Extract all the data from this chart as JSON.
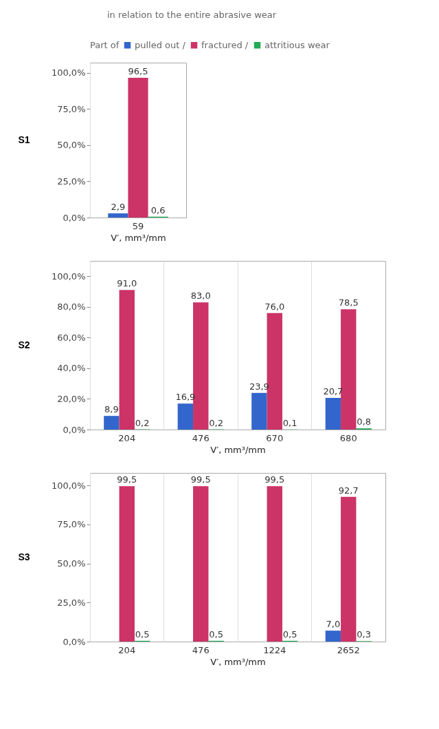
{
  "chart_data": [
    {
      "type": "bar",
      "legend_title": "Part of",
      "subtitle": "in relation to the entire abrasive wear",
      "legend": "top",
      "ylabel": "S1",
      "xlabel": "V′, mm³/mm",
      "categories": [
        "59"
      ],
      "ylim": [
        0,
        107
      ],
      "yticks": [
        {
          "value": 0,
          "label": "0,0%"
        },
        {
          "value": 25,
          "label": "25,0%"
        },
        {
          "value": 50,
          "label": "50,0%"
        },
        {
          "value": 75,
          "label": "75,0%"
        },
        {
          "value": 100,
          "label": "100,0%"
        }
      ],
      "series": [
        {
          "name": "pulled out /",
          "color": "#3366cc",
          "values": [
            2.9
          ],
          "value_labels": [
            "2,9"
          ]
        },
        {
          "name": "fractured /",
          "color": "#cc3366",
          "values": [
            96.5
          ],
          "value_labels": [
            "96,5"
          ]
        },
        {
          "name": "attritious wear",
          "color": "#22aa55",
          "values": [
            0.6
          ],
          "value_labels": [
            "0,6"
          ]
        }
      ]
    },
    {
      "type": "bar",
      "ylabel": "S2",
      "xlabel": "V′, mm³/mm",
      "categories": [
        "204",
        "476",
        "670",
        "680"
      ],
      "ylim": [
        0,
        110
      ],
      "yticks": [
        {
          "value": 0,
          "label": "0,0%"
        },
        {
          "value": 20,
          "label": "20,0%"
        },
        {
          "value": 40,
          "label": "40,0%"
        },
        {
          "value": 60,
          "label": "60,0%"
        },
        {
          "value": 80,
          "label": "80,0%"
        },
        {
          "value": 100,
          "label": "100,0%"
        }
      ],
      "series": [
        {
          "color": "#3366cc",
          "values": [
            8.9,
            16.9,
            23.9,
            20.7
          ],
          "value_labels": [
            "8,9",
            "16,9",
            "23,9",
            "20,7"
          ]
        },
        {
          "color": "#cc3366",
          "values": [
            91.0,
            83.0,
            76.0,
            78.5
          ],
          "value_labels": [
            "91,0",
            "83,0",
            "76,0",
            "78,5"
          ]
        },
        {
          "color": "#22aa55",
          "values": [
            0.2,
            0.2,
            0.1,
            0.8
          ],
          "value_labels": [
            "0,2",
            "0,2",
            "0,1",
            "0,8"
          ]
        }
      ]
    },
    {
      "type": "bar",
      "ylabel": "S3",
      "xlabel": "V′, mm³/mm",
      "categories": [
        "204",
        "476",
        "1224",
        "2652"
      ],
      "ylim": [
        0,
        108
      ],
      "yticks": [
        {
          "value": 0,
          "label": "0,0%"
        },
        {
          "value": 25,
          "label": "25,0%"
        },
        {
          "value": 50,
          "label": "50,0%"
        },
        {
          "value": 75,
          "label": "75,0%"
        },
        {
          "value": 100,
          "label": "100,0%"
        }
      ],
      "series": [
        {
          "color": "#3366cc",
          "values": [
            null,
            null,
            null,
            7.0
          ],
          "value_labels": [
            null,
            null,
            null,
            "7,0"
          ]
        },
        {
          "color": "#cc3366",
          "values": [
            99.5,
            99.5,
            99.5,
            92.7
          ],
          "value_labels": [
            "99,5",
            "99,5",
            "99,5",
            "92,7"
          ]
        },
        {
          "color": "#22aa55",
          "values": [
            0.5,
            0.5,
            0.5,
            0.3
          ],
          "value_labels": [
            "0,5",
            "0,5",
            "0,5",
            "0,3"
          ]
        }
      ]
    }
  ]
}
